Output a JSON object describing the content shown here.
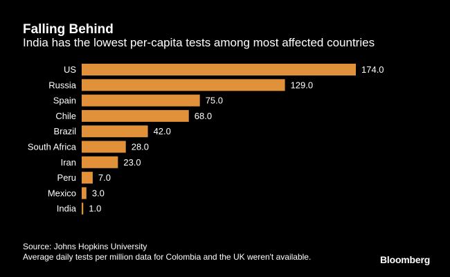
{
  "chart_data": {
    "type": "bar",
    "orientation": "horizontal",
    "title": "Falling Behind",
    "subtitle": "India has the lowest per-capita tests among most affected countries",
    "categories": [
      "US",
      "Russia",
      "Spain",
      "Chile",
      "Brazil",
      "South Africa",
      "Iran",
      "Peru",
      "Mexico",
      "India"
    ],
    "values": [
      174.0,
      129.0,
      75.0,
      68.0,
      42.0,
      28.0,
      23.0,
      7.0,
      3.0,
      1.0
    ],
    "value_labels": [
      "174.0",
      "129.0",
      "75.0",
      "68.0",
      "42.0",
      "28.0",
      "23.0",
      "7.0",
      "3.0",
      "1.0"
    ],
    "xlim": [
      0,
      174
    ],
    "xlabel": "",
    "ylabel": "",
    "grid": false,
    "bar_color": "#e0913a"
  },
  "source": "Source: Johns Hopkins University",
  "footnote": "Average daily tests per million data for Colombia and the UK weren't available.",
  "brand": "Bloomberg",
  "colors": {
    "background": "#000000",
    "text": "#ffffff",
    "bar": "#e0913a"
  }
}
